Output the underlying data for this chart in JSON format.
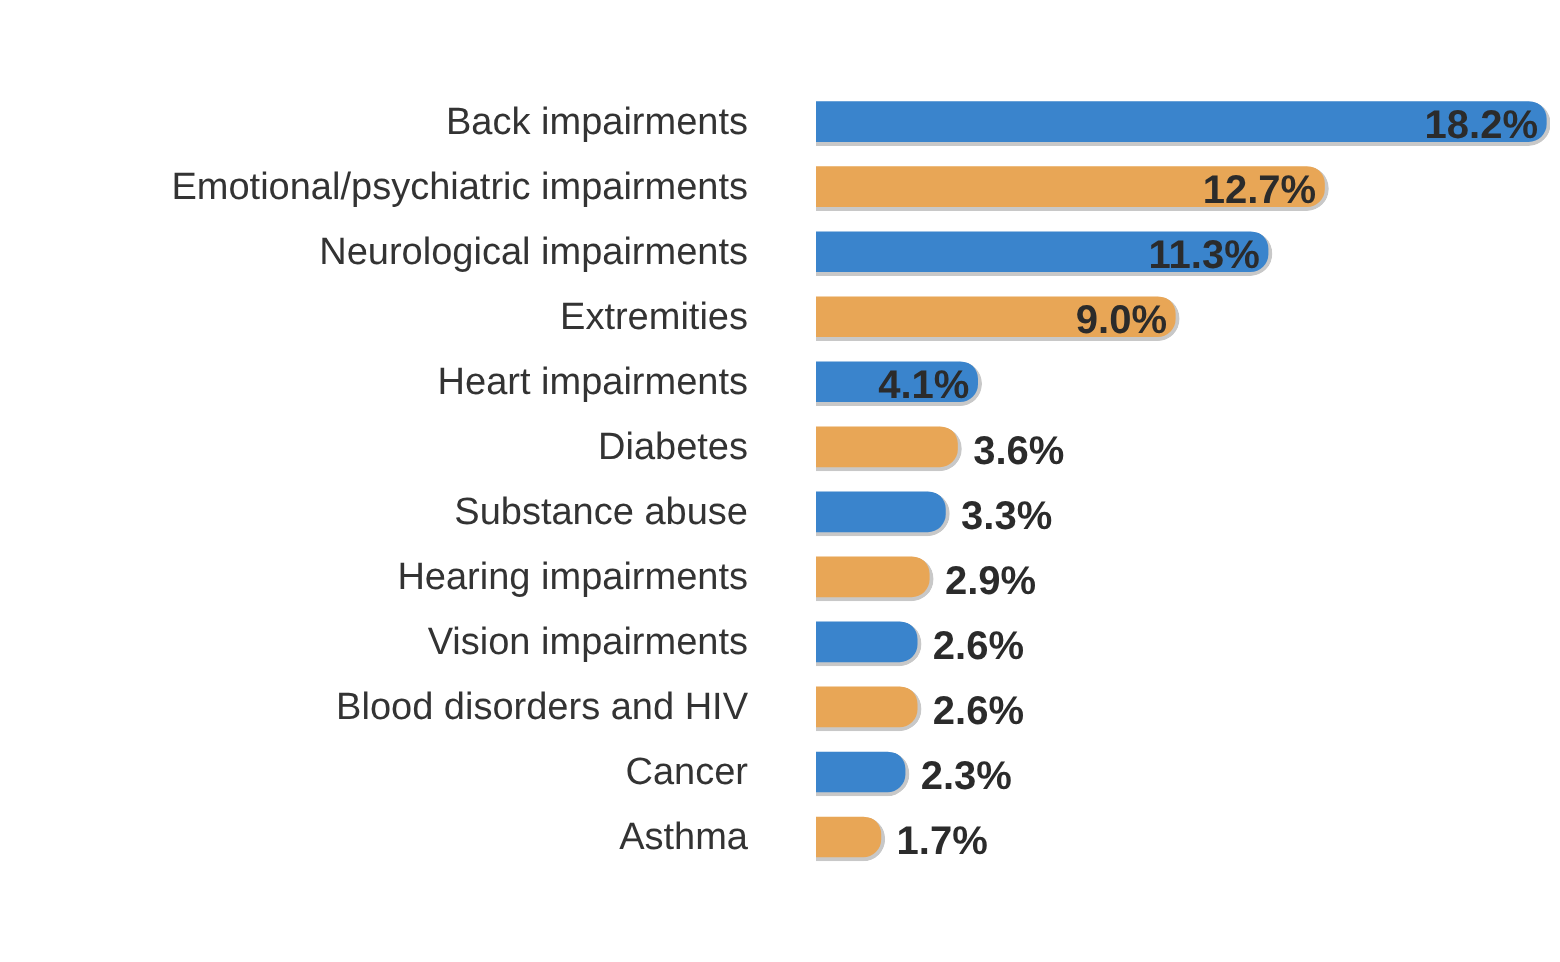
{
  "chart_data": {
    "type": "bar",
    "orientation": "horizontal",
    "categories": [
      "Back impairments",
      "Emotional/psychiatric impairments",
      "Neurological impairments",
      "Extremities",
      "Heart impairments",
      "Diabetes",
      "Substance abuse",
      "Hearing impairments",
      "Vision impairments",
      "Blood disorders and HIV",
      "Cancer",
      "Asthma"
    ],
    "values": [
      18.2,
      12.7,
      11.3,
      9.0,
      4.1,
      3.6,
      3.3,
      2.9,
      2.6,
      2.6,
      2.3,
      1.7
    ],
    "colors": [
      "#3a84cc",
      "#e8a656",
      "#3a84cc",
      "#e8a656",
      "#3a84cc",
      "#e8a656",
      "#3a84cc",
      "#e8a656",
      "#3a84cc",
      "#e8a656",
      "#3a84cc",
      "#e8a656"
    ],
    "value_labels": [
      "18.2%",
      "12.7%",
      "11.3%",
      "9.0%",
      "4.1%",
      "3.6%",
      "3.3%",
      "2.9%",
      "2.6%",
      "2.6%",
      "2.3%",
      "1.7%"
    ],
    "grid": false,
    "legend": false
  }
}
